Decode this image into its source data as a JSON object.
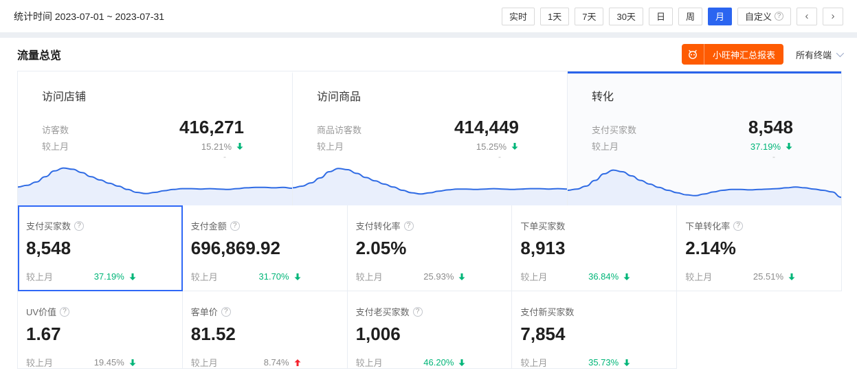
{
  "colors": {
    "accent_blue": "#2B65F0",
    "selected_border_blue": "#2F68F6",
    "orange": "#FE5B02",
    "green": "#00B578",
    "red": "#F5222D",
    "gray_text": "#8C8C8C",
    "spark_line": "#2F6BE4",
    "spark_fill": "#E9EFFC",
    "grid_border": "#E9EDF3"
  },
  "icons": {
    "help": "?",
    "prev": "‹",
    "next": "›"
  },
  "header": {
    "stat_time_label": "统计时间 2023-07-01 ~ 2023-07-31",
    "range_buttons": [
      {
        "label": "实时",
        "active": false
      },
      {
        "label": "1天",
        "active": false
      },
      {
        "label": "7天",
        "active": false
      },
      {
        "label": "30天",
        "active": false
      },
      {
        "label": "日",
        "active": false
      },
      {
        "label": "周",
        "active": false
      },
      {
        "label": "月",
        "active": true
      },
      {
        "label": "自定义",
        "active": false,
        "has_help_icon": true
      }
    ]
  },
  "section": {
    "title": "流量总览",
    "report_button_label": "小旺神汇总报表",
    "terminal_select_value": "所有终端"
  },
  "overview_cards": [
    {
      "title": "访问店铺",
      "metric_label": "访客数",
      "value": "416,271",
      "compare_label": "较上月",
      "change": "15.21%",
      "direction": "down",
      "change_color": "gray",
      "sub": "-",
      "selected": false
    },
    {
      "title": "访问商品",
      "metric_label": "商品访客数",
      "value": "414,449",
      "compare_label": "较上月",
      "change": "15.25%",
      "direction": "down",
      "change_color": "gray",
      "sub": "-",
      "selected": false
    },
    {
      "title": "转化",
      "metric_label": "支付买家数",
      "value": "8,548",
      "compare_label": "较上月",
      "change": "37.19%",
      "direction": "down",
      "change_color": "green",
      "sub": "-",
      "selected": true
    }
  ],
  "metrics": {
    "cells": [
      {
        "label": "支付买家数",
        "has_help_icon": true,
        "value": "8,548",
        "compare_label": "较上月",
        "change": "37.19%",
        "direction": "down",
        "change_color": "green",
        "selected": true
      },
      {
        "label": "支付金额",
        "has_help_icon": true,
        "value": "696,869.92",
        "compare_label": "较上月",
        "change": "31.70%",
        "direction": "down",
        "change_color": "green",
        "selected": false
      },
      {
        "label": "支付转化率",
        "has_help_icon": true,
        "value": "2.05%",
        "compare_label": "较上月",
        "change": "25.93%",
        "direction": "down",
        "change_color": "gray",
        "selected": false
      },
      {
        "label": "下单买家数",
        "has_help_icon": false,
        "value": "8,913",
        "compare_label": "较上月",
        "change": "36.84%",
        "direction": "down",
        "change_color": "green",
        "selected": false
      },
      {
        "label": "下单转化率",
        "has_help_icon": true,
        "value": "2.14%",
        "compare_label": "较上月",
        "change": "25.51%",
        "direction": "down",
        "change_color": "gray",
        "selected": false
      },
      {
        "label": "UV价值",
        "has_help_icon": true,
        "value": "1.67",
        "compare_label": "较上月",
        "change": "19.45%",
        "direction": "down",
        "change_color": "gray",
        "selected": false
      },
      {
        "label": "客单价",
        "has_help_icon": true,
        "value": "81.52",
        "compare_label": "较上月",
        "change": "8.74%",
        "direction": "up",
        "change_color": "gray",
        "selected": false
      },
      {
        "label": "支付老买家数",
        "has_help_icon": true,
        "value": "1,006",
        "compare_label": "较上月",
        "change": "46.20%",
        "direction": "down",
        "change_color": "green",
        "selected": false
      },
      {
        "label": "支付新买家数",
        "has_help_icon": false,
        "value": "7,854",
        "compare_label": "较上月",
        "change": "35.73%",
        "direction": "down",
        "change_color": "green",
        "selected": false
      }
    ]
  },
  "chart_data": [
    {
      "type": "area",
      "name": "shop-visits-sparkline",
      "x_range": "2023-07-01 ~ 2023-07-31",
      "normalized_0_100": true,
      "values": [
        38,
        42,
        50,
        63,
        77,
        84,
        81,
        73,
        63,
        55,
        47,
        40,
        32,
        25,
        22,
        25,
        29,
        32,
        34,
        34,
        33,
        34,
        33,
        32,
        34,
        36,
        37,
        37,
        36,
        37,
        35
      ]
    },
    {
      "type": "area",
      "name": "item-visits-sparkline",
      "x_range": "2023-07-01 ~ 2023-07-31",
      "normalized_0_100": true,
      "values": [
        36,
        40,
        48,
        60,
        75,
        83,
        80,
        71,
        61,
        53,
        45,
        38,
        30,
        24,
        21,
        24,
        28,
        31,
        33,
        33,
        32,
        33,
        34,
        33,
        32,
        33,
        34,
        34,
        33,
        34,
        33
      ]
    },
    {
      "type": "area",
      "name": "conversion-sparkline",
      "x_range": "2023-07-01 ~ 2023-07-31",
      "normalized_0_100": true,
      "values": [
        30,
        33,
        40,
        54,
        70,
        79,
        75,
        65,
        54,
        45,
        37,
        30,
        24,
        19,
        17,
        21,
        26,
        30,
        32,
        32,
        31,
        32,
        33,
        34,
        36,
        38,
        36,
        33,
        30,
        26,
        13
      ]
    }
  ]
}
